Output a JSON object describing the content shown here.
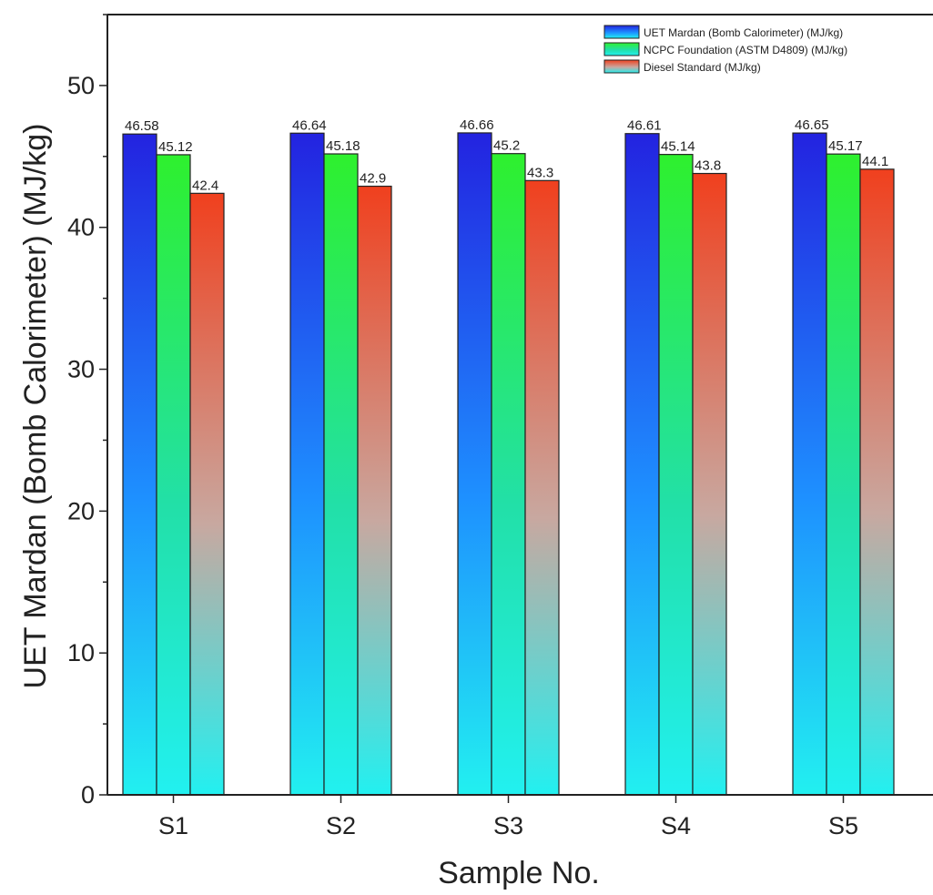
{
  "chart_data": {
    "type": "bar",
    "xlabel": "Sample No.",
    "ylabel": "UET Mardan (Bomb Calorimeter) (MJ/kg)",
    "ylim": [
      0,
      55
    ],
    "yticks": [
      0,
      10,
      20,
      30,
      40,
      50
    ],
    "categories": [
      "S1",
      "S2",
      "S3",
      "S4",
      "S5"
    ],
    "series": [
      {
        "name": "UET Mardan (Bomb Calorimeter) (MJ/kg)",
        "values": [
          46.58,
          46.64,
          46.66,
          46.61,
          46.65
        ],
        "labels": [
          "46.58",
          "46.64",
          "46.66",
          "46.61",
          "46.65"
        ],
        "gradient_top": "#2323e0",
        "gradient_mid": "#1e90ff",
        "gradient_bottom": "#22f0f0"
      },
      {
        "name": "NCPC Foundation (ASTM D4809) (MJ/kg)",
        "values": [
          45.12,
          45.18,
          45.2,
          45.14,
          45.17
        ],
        "labels": [
          "45.12",
          "45.18",
          "45.2",
          "45.14",
          "45.17"
        ],
        "gradient_top": "#2ef02e",
        "gradient_mid": "#22e0a8",
        "gradient_bottom": "#22f0f0"
      },
      {
        "name": "Diesel Standard (MJ/kg)",
        "values": [
          42.4,
          42.9,
          43.3,
          43.8,
          44.1
        ],
        "labels": [
          "42.4",
          "42.9",
          "43.3",
          "43.8",
          "44.1"
        ],
        "gradient_top": "#f0401e",
        "gradient_mid": "#c8a8a0",
        "gradient_bottom": "#22f0f0"
      }
    ],
    "legend_position": "top-right",
    "grid": false
  }
}
